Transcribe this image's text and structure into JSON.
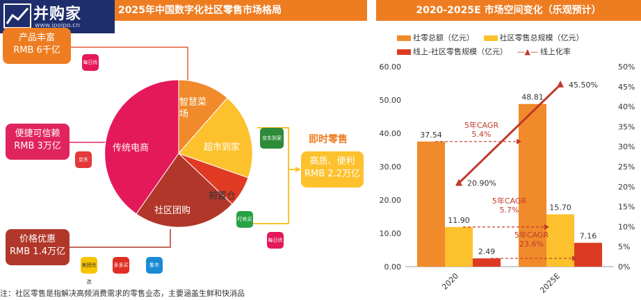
{
  "left_panel": {
    "title": "2025年中国数字化社区零售市场格局",
    "logo": {
      "name": "并购家",
      "url": "www.ipoipo.cn"
    },
    "boxes": {
      "rich": {
        "line1": "产品丰富",
        "line2": "RMB 6千亿"
      },
      "convenient": {
        "line1": "便捷可信赖",
        "line2": "RMB 3万亿"
      },
      "price": {
        "line1": "价格优惠",
        "line2": "RMB 1.4万亿"
      },
      "instant": {
        "line1": "高质、便利",
        "line2": "RMB 2.2万亿"
      }
    },
    "instant_retail_title": "即时零售",
    "pie_labels": {
      "ecommerce": "传统电商",
      "smart_market_1": "智慧菜",
      "smart_market_2": "场",
      "supermarket": "超市到家",
      "front_warehouse": "前置仓",
      "community_group": "社区团购"
    },
    "brands": [
      "每日优鲜",
      "京东",
      "京东到家",
      "叮咚买菜",
      "每日优鲜",
      "美团优选",
      "多多买菜",
      "集市"
    ],
    "footnote": "注：社区零售是指解决高频消费需求的零售业态，主要涵盖生鲜和快消品"
  },
  "chart_data": {
    "type": "bar",
    "title": "2020-2025E 市场空间变化（乐观预计）",
    "categories": [
      "2020",
      "2025E"
    ],
    "series": [
      {
        "name": "社零总额（亿元）",
        "values": [
          37.54,
          48.81
        ],
        "color": "#f08a2b"
      },
      {
        "name": "社区零售总规模（亿元）",
        "values": [
          11.9,
          15.7
        ],
        "color": "#fcc12d"
      },
      {
        "name": "线上-社区零售规模（亿元）",
        "values": [
          2.49,
          7.16
        ],
        "color": "#dc3b22"
      }
    ],
    "line_series": {
      "name": "线上化率",
      "values": [
        20.9,
        45.5
      ],
      "color": "#c0392b"
    },
    "value_labels": {
      "bars": [
        [
          "37.54",
          "11.90",
          "2.49"
        ],
        [
          "48.81",
          "15.70",
          "7.16"
        ]
      ],
      "line": [
        "20.90%",
        "45.50%"
      ]
    },
    "y_left": {
      "min": 0,
      "max": 60,
      "ticks": [
        "0.00",
        "10.00",
        "20.00",
        "30.00",
        "40.00",
        "50.00",
        "60.00"
      ]
    },
    "y_right": {
      "min": 0,
      "max": 50,
      "ticks": [
        "0%",
        "5%",
        "10%",
        "15%",
        "20%",
        "25%",
        "30%",
        "35%",
        "40%",
        "45%",
        "50%"
      ]
    },
    "cagr_annotations": [
      {
        "line1": "5年CAGR",
        "line2": "5.4%"
      },
      {
        "line1": "5年CAGR",
        "line2": "5.7%"
      },
      {
        "line1": "5年CAGR",
        "line2": "23.6%"
      }
    ],
    "legend_position": "top"
  }
}
